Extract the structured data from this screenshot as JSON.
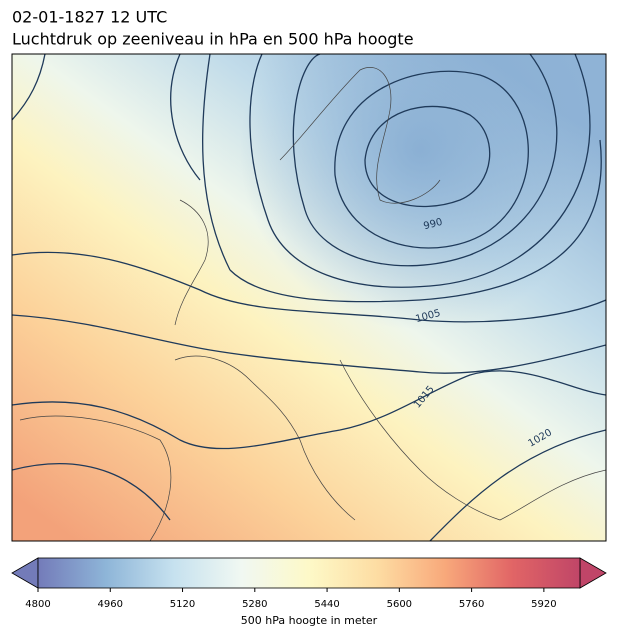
{
  "header": {
    "date": "02-01-1827 12 UTC",
    "title": "Luchtdruk op zeeniveau in hPa en 500 hPa hoogte"
  },
  "map": {
    "contour_labels": [
      {
        "value": 990
      },
      {
        "value": 1005
      },
      {
        "value": 1015
      },
      {
        "value": 1020
      }
    ]
  },
  "colorbar": {
    "label": "500 hPa hoogte in meter",
    "lim": [
      4800,
      6000
    ],
    "ticks": [
      4800,
      4960,
      5120,
      5280,
      5440,
      5600,
      5760,
      5920
    ],
    "colormap": [
      "#5b64ad",
      "#7aa8d1",
      "#bcdcec",
      "#eef7f0",
      "#fdf8be",
      "#fdd793",
      "#f79a64",
      "#dc4a4b",
      "#b5254d"
    ]
  }
}
